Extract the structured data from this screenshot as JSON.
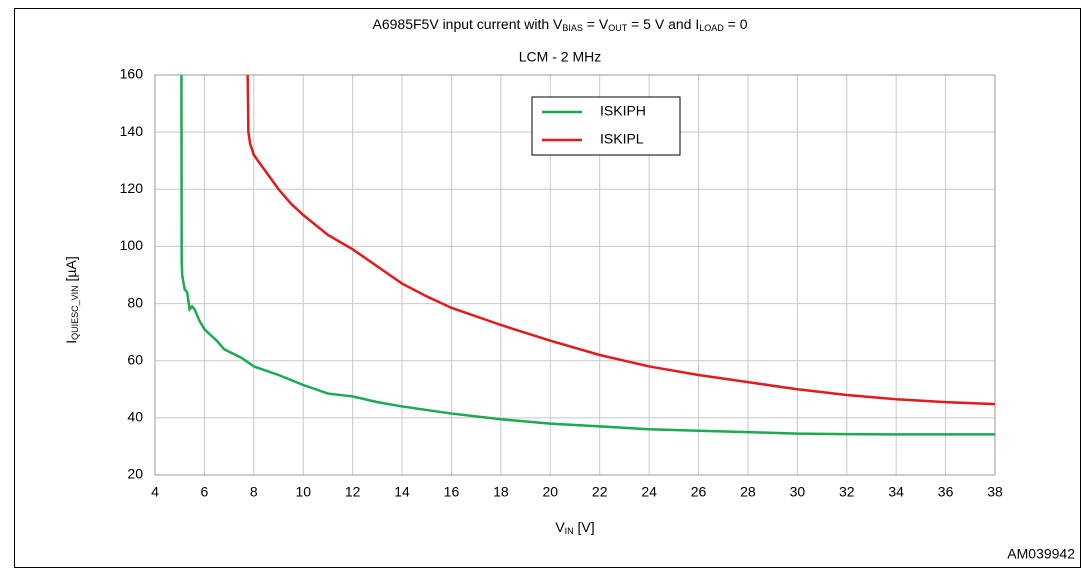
{
  "chart_data": {
    "type": "line",
    "title": [
      "A6985F5V  input current with V",
      "BIAS",
      " = V",
      "OUT",
      " = 5  V and  I",
      "LOAD",
      " = 0"
    ],
    "subtitle": "LCM - 2 MHz",
    "x_label": [
      "V",
      "IN",
      " [V]"
    ],
    "y_label": [
      "I",
      "QUIESC_VIN",
      " [µA]"
    ],
    "code": "AM039942",
    "xlim": [
      4,
      38
    ],
    "xticks": [
      4,
      6,
      8,
      10,
      12,
      14,
      16,
      18,
      20,
      22,
      24,
      26,
      28,
      30,
      32,
      34,
      36,
      38
    ],
    "ylim": [
      20,
      160
    ],
    "yticks": [
      20,
      40,
      60,
      80,
      100,
      120,
      140,
      160
    ],
    "grid": true,
    "series": [
      {
        "name": "ISKIPH",
        "color": "#1aaa50",
        "x": [
          5.07,
          5.08,
          5.1,
          5.2,
          5.3,
          5.4,
          5.5,
          5.6,
          5.8,
          6,
          6.5,
          6.8,
          7.5,
          8,
          9,
          10,
          11,
          12,
          13,
          14,
          16,
          18,
          20,
          22,
          24,
          26,
          28,
          30,
          32,
          34,
          36,
          38
        ],
        "values": [
          160,
          95,
          90,
          85,
          84,
          78,
          79,
          78,
          74,
          71,
          67,
          64,
          61,
          58,
          55,
          51.5,
          48.5,
          47.5,
          45.5,
          44,
          41.5,
          39.5,
          38,
          37,
          36,
          35.5,
          35,
          34.5,
          34.3,
          34.2,
          34.2,
          34.2
        ]
      },
      {
        "name": "ISKIPL",
        "color": "#e31a1c",
        "x": [
          7.75,
          7.78,
          7.85,
          8,
          8.5,
          9,
          9.5,
          10,
          11,
          12,
          13,
          14,
          15,
          16,
          18,
          20,
          22,
          24,
          26,
          28,
          30,
          32,
          34,
          36,
          38
        ],
        "values": [
          160,
          140,
          136,
          132,
          126,
          120,
          115,
          111,
          104,
          99,
          93,
          87,
          82.5,
          78.5,
          72.5,
          67,
          62,
          58,
          55,
          52.5,
          50,
          48,
          46.5,
          45.5,
          44.8
        ]
      }
    ]
  }
}
